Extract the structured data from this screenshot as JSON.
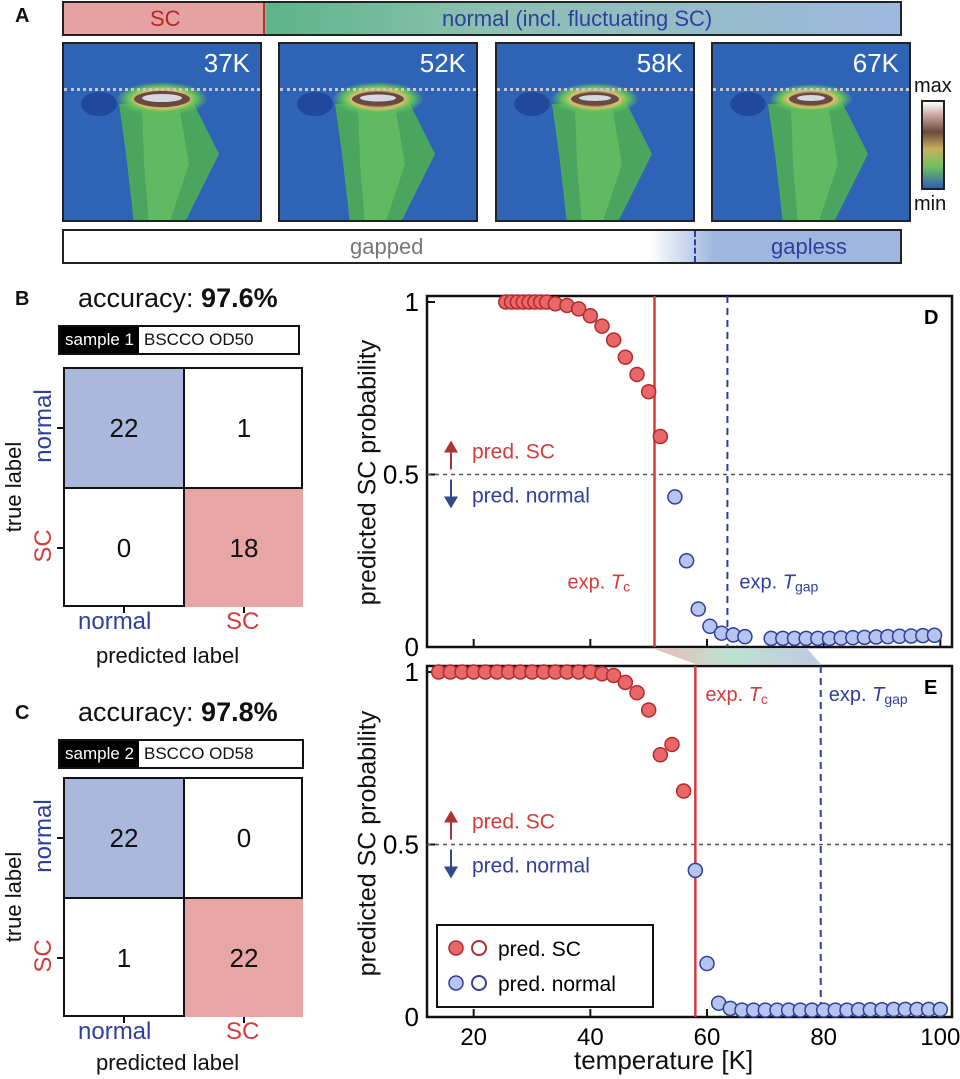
{
  "panel_a": {
    "letter": "A",
    "top_band": {
      "sc_label": "SC",
      "normal_label": "normal (incl. fluctuating SC)"
    },
    "spectra": [
      {
        "temperature": "37K",
        "intensity": 1.0
      },
      {
        "temperature": "52K",
        "intensity": 0.9
      },
      {
        "temperature": "58K",
        "intensity": 0.85
      },
      {
        "temperature": "67K",
        "intensity": 0.75
      }
    ],
    "colorbar": {
      "max_label": "max",
      "min_label": "min"
    },
    "bottom_band": {
      "gapped_label": "gapped",
      "gapless_label": "gapless"
    }
  },
  "panel_b": {
    "letter": "B",
    "accuracy_prefix": "accuracy: ",
    "accuracy_value": "97.6%",
    "sample_tag": "sample 1",
    "sample_name": "BSCCO OD50",
    "matrix": {
      "normal_normal": "22",
      "normal_sc": "1",
      "sc_normal": "0",
      "sc_sc": "18"
    },
    "true_label": "true label",
    "predicted_label": "predicted label",
    "row_labels": [
      "normal",
      "SC"
    ],
    "col_labels": [
      "normal",
      "SC"
    ]
  },
  "panel_c": {
    "letter": "C",
    "accuracy_prefix": "accuracy: ",
    "accuracy_value": "97.8%",
    "sample_tag": "sample 2",
    "sample_name": "BSCCO OD58",
    "matrix": {
      "normal_normal": "22",
      "normal_sc": "0",
      "sc_normal": "1",
      "sc_sc": "22"
    },
    "true_label": "true label",
    "predicted_label": "predicted label",
    "row_labels": [
      "normal",
      "SC"
    ],
    "col_labels": [
      "normal",
      "SC"
    ]
  },
  "colors": {
    "sc_red": "#d63a3a",
    "normal_blue": "#2f3f9e",
    "cm_blue": "#aab8dc",
    "cm_red": "#e8a5a5"
  },
  "chart_data": [
    {
      "type": "scatter",
      "panel": "D",
      "ylabel": "predicted SC probability",
      "xlim": [
        12,
        102
      ],
      "ylim": [
        0,
        1
      ],
      "yticks": [
        "0",
        "0.5",
        "1"
      ],
      "exp_tc": 51,
      "exp_tgap": 63.5,
      "tc_label_prefix": "exp. ",
      "tc_label_T": "T",
      "tc_label_sub": "c",
      "tgap_label_prefix": "exp. ",
      "tgap_label_T": "T",
      "tgap_label_sub": "gap",
      "pred_sc_label": "pred. SC",
      "pred_normal_label": "pred. normal",
      "sc_points": [
        [
          25.5,
          1.0
        ],
        [
          26.5,
          1.0
        ],
        [
          27.5,
          1.0
        ],
        [
          28.5,
          1.0
        ],
        [
          29.5,
          1.0
        ],
        [
          30.5,
          1.0
        ],
        [
          31.5,
          1.0
        ],
        [
          32.5,
          1.0
        ],
        [
          34,
          0.995
        ],
        [
          36,
          0.99
        ],
        [
          38,
          0.98
        ],
        [
          40,
          0.96
        ],
        [
          42,
          0.93
        ],
        [
          44,
          0.89
        ],
        [
          46,
          0.84
        ],
        [
          48,
          0.79
        ],
        [
          50,
          0.74
        ],
        [
          52,
          0.61
        ]
      ],
      "normal_points": [
        [
          54.5,
          0.435
        ],
        [
          56.5,
          0.25
        ],
        [
          58.5,
          0.11
        ],
        [
          60.5,
          0.06
        ],
        [
          62.5,
          0.04
        ],
        [
          64.5,
          0.035
        ],
        [
          66.5,
          0.03
        ],
        [
          71,
          0.025
        ],
        [
          73,
          0.025
        ],
        [
          75,
          0.025
        ],
        [
          77,
          0.025
        ],
        [
          79,
          0.025
        ],
        [
          81,
          0.025
        ],
        [
          83,
          0.026
        ],
        [
          85,
          0.027
        ],
        [
          87,
          0.028
        ],
        [
          89,
          0.029
        ],
        [
          91,
          0.03
        ],
        [
          93,
          0.031
        ],
        [
          95,
          0.032
        ],
        [
          97,
          0.033
        ],
        [
          99,
          0.034
        ]
      ]
    },
    {
      "type": "scatter",
      "panel": "E",
      "ylabel": "predicted SC probability",
      "xlabel": "temperature [K]",
      "xlim": [
        12,
        102
      ],
      "ylim": [
        0,
        1
      ],
      "xticks": [
        "20",
        "40",
        "60",
        "80",
        "100"
      ],
      "yticks": [
        "0",
        "0.5",
        "1"
      ],
      "exp_tc": 58,
      "exp_tgap": 79.5,
      "tc_label_prefix": "exp. ",
      "tc_label_T": "T",
      "tc_label_sub": "c",
      "tgap_label_prefix": "exp. ",
      "tgap_label_T": "T",
      "tgap_label_sub": "gap",
      "pred_sc_label": "pred. SC",
      "pred_normal_label": "pred. normal",
      "legend": [
        "pred. SC",
        "pred. normal"
      ],
      "sc_points": [
        [
          14,
          1.0
        ],
        [
          16,
          1.0
        ],
        [
          18,
          1.0
        ],
        [
          20,
          1.0
        ],
        [
          22,
          1.0
        ],
        [
          24,
          1.0
        ],
        [
          26,
          1.0
        ],
        [
          28,
          1.0
        ],
        [
          30,
          1.0
        ],
        [
          32,
          1.0
        ],
        [
          34,
          1.0
        ],
        [
          36,
          1.0
        ],
        [
          38,
          1.0
        ],
        [
          40,
          1.0
        ],
        [
          42,
          0.995
        ],
        [
          44,
          0.99
        ],
        [
          46,
          0.97
        ],
        [
          48,
          0.94
        ],
        [
          50,
          0.89
        ],
        [
          52,
          0.76
        ],
        [
          54,
          0.79
        ],
        [
          56,
          0.655
        ]
      ],
      "normal_points": [
        [
          58,
          0.425
        ],
        [
          60,
          0.155
        ],
        [
          62,
          0.04
        ],
        [
          64,
          0.025
        ],
        [
          66,
          0.02
        ],
        [
          68,
          0.02
        ],
        [
          70,
          0.02
        ],
        [
          72,
          0.02
        ],
        [
          74,
          0.02
        ],
        [
          76,
          0.02
        ],
        [
          78,
          0.02
        ],
        [
          80,
          0.02
        ],
        [
          82,
          0.02
        ],
        [
          84,
          0.02
        ],
        [
          86,
          0.021
        ],
        [
          88,
          0.021
        ],
        [
          90,
          0.021
        ],
        [
          92,
          0.022
        ],
        [
          94,
          0.022
        ],
        [
          96,
          0.022
        ],
        [
          98,
          0.022
        ],
        [
          100,
          0.022
        ]
      ]
    }
  ]
}
